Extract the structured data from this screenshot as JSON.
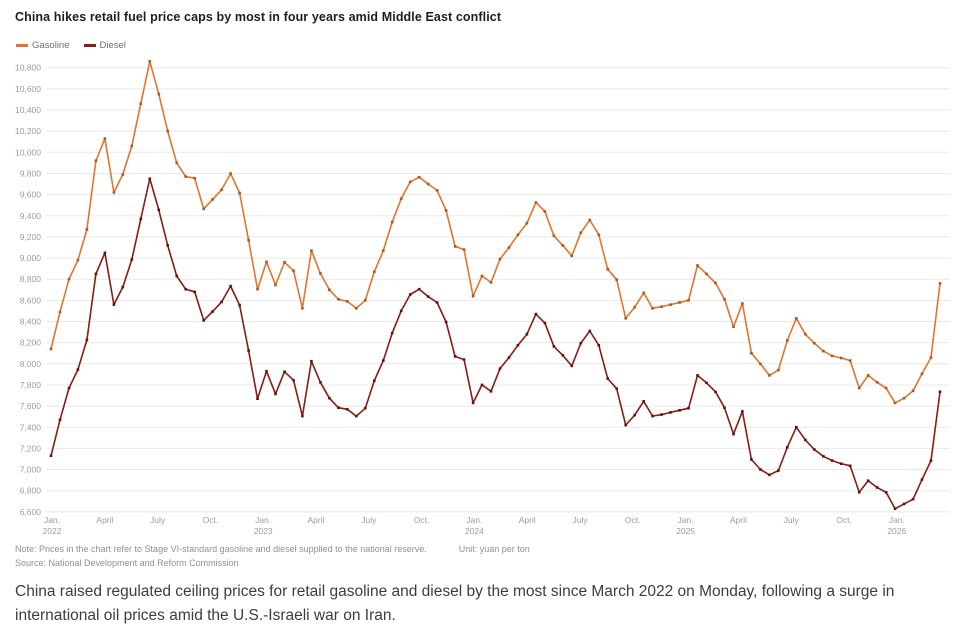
{
  "header": {
    "title": "China hikes retail fuel price caps by most in four years amid Middle East conflict"
  },
  "legend": {
    "items": [
      {
        "label": "Gasoline",
        "color": "#E0752E"
      },
      {
        "label": "Diesel",
        "color": "#871D13"
      }
    ]
  },
  "chart_data": {
    "type": "line",
    "title": "China hikes retail fuel price caps by most in four years amid Middle East conflict",
    "xlabel": "",
    "ylabel": "yuan per ton",
    "ylim": [
      6600,
      10800
    ],
    "y_tick_step": 200,
    "grid": "horizontal",
    "legend_position": "top-left",
    "colors": {
      "grid": "#E8E8E8",
      "axis_text": "#9C9C9C"
    },
    "y_tick_labels": [
      "10,800",
      "10,600",
      "10,400",
      "10,200",
      "10,000",
      "9,800",
      "9,600",
      "9,400",
      "9,200",
      "9,000",
      "8,800",
      "8,600",
      "8,400",
      "8,200",
      "8,000",
      "7,800",
      "7,600",
      "7,400",
      "7,200",
      "7,000",
      "6,800",
      "6,600"
    ],
    "x_tick_labels": [
      {
        "month": "Jan.",
        "year": "2022"
      },
      {
        "month": "April",
        "year": ""
      },
      {
        "month": "July",
        "year": ""
      },
      {
        "month": "Oct.",
        "year": ""
      },
      {
        "month": "Jan.",
        "year": "2023"
      },
      {
        "month": "April",
        "year": ""
      },
      {
        "month": "July",
        "year": ""
      },
      {
        "month": "Oct.",
        "year": ""
      },
      {
        "month": "Jan.",
        "year": "2024"
      },
      {
        "month": "April",
        "year": ""
      },
      {
        "month": "July",
        "year": ""
      },
      {
        "month": "Oct.",
        "year": ""
      },
      {
        "month": "Jan.",
        "year": "2025"
      },
      {
        "month": "April",
        "year": ""
      },
      {
        "month": "July",
        "year": ""
      },
      {
        "month": "Oct.",
        "year": ""
      },
      {
        "month": "Jan.",
        "year": "2026"
      }
    ],
    "points_per_tick_interval": 3.53,
    "series": [
      {
        "name": "Gasoline",
        "color": "#E0752E",
        "marker_color": "#AA5526",
        "values": [
          8140,
          8490,
          8800,
          8980,
          9270,
          9920,
          10130,
          9620,
          9790,
          10060,
          10460,
          10860,
          10550,
          10200,
          9900,
          9770,
          9755,
          9465,
          9555,
          9645,
          9800,
          9615,
          9170,
          8705,
          8965,
          8745,
          8960,
          8880,
          8525,
          9070,
          8855,
          8700,
          8610,
          8590,
          8525,
          8600,
          8870,
          9070,
          9340,
          9560,
          9720,
          9765,
          9700,
          9640,
          9450,
          9110,
          9080,
          8640,
          8830,
          8770,
          8990,
          9100,
          9220,
          9330,
          9525,
          9440,
          9210,
          9120,
          9020,
          9240,
          9360,
          9220,
          8895,
          8795,
          8430,
          8535,
          8670,
          8525,
          8540,
          8560,
          8580,
          8600,
          8930,
          8850,
          8765,
          8610,
          8350,
          8570,
          8100,
          8000,
          7890,
          7940,
          8220,
          8430,
          8280,
          8195,
          8120,
          8075,
          8055,
          8030,
          7770,
          7890,
          7825,
          7770,
          7630,
          7675,
          7745,
          7905,
          8060,
          8760
        ]
      },
      {
        "name": "Diesel",
        "color": "#871D13",
        "marker_color": "#621309",
        "values": [
          7130,
          7470,
          7770,
          7945,
          8225,
          8850,
          9050,
          8560,
          8725,
          8985,
          9370,
          9750,
          9455,
          9120,
          8830,
          8705,
          8680,
          8410,
          8495,
          8585,
          8735,
          8555,
          8125,
          7670,
          7930,
          7715,
          7925,
          7845,
          7505,
          8025,
          7825,
          7675,
          7585,
          7570,
          7505,
          7580,
          7840,
          8030,
          8290,
          8500,
          8655,
          8705,
          8635,
          8580,
          8395,
          8070,
          8040,
          7630,
          7800,
          7740,
          7955,
          8060,
          8175,
          8280,
          8470,
          8385,
          8165,
          8080,
          7980,
          8195,
          8310,
          8175,
          7860,
          7765,
          7420,
          7515,
          7645,
          7505,
          7520,
          7540,
          7560,
          7580,
          7890,
          7820,
          7735,
          7585,
          7335,
          7550,
          7095,
          7000,
          6950,
          6990,
          7210,
          7400,
          7280,
          7190,
          7125,
          7085,
          7055,
          7035,
          6785,
          6895,
          6830,
          6785,
          6630,
          6675,
          6720,
          6905,
          7085,
          7735
        ]
      }
    ]
  },
  "footer": {
    "note": "Note: Prices in the chart refer to Stage VI-standard gasoline and diesel supplied to the national reserve.",
    "unit_note": "Unit: yuan per ton",
    "source": "Source: National Development and Reform Commission"
  },
  "caption": "China raised regulated ceiling prices for retail gasoline and diesel by the most since March 2022 on Monday, following a surge in international oil prices amid the U.S.-Israeli war on Iran."
}
